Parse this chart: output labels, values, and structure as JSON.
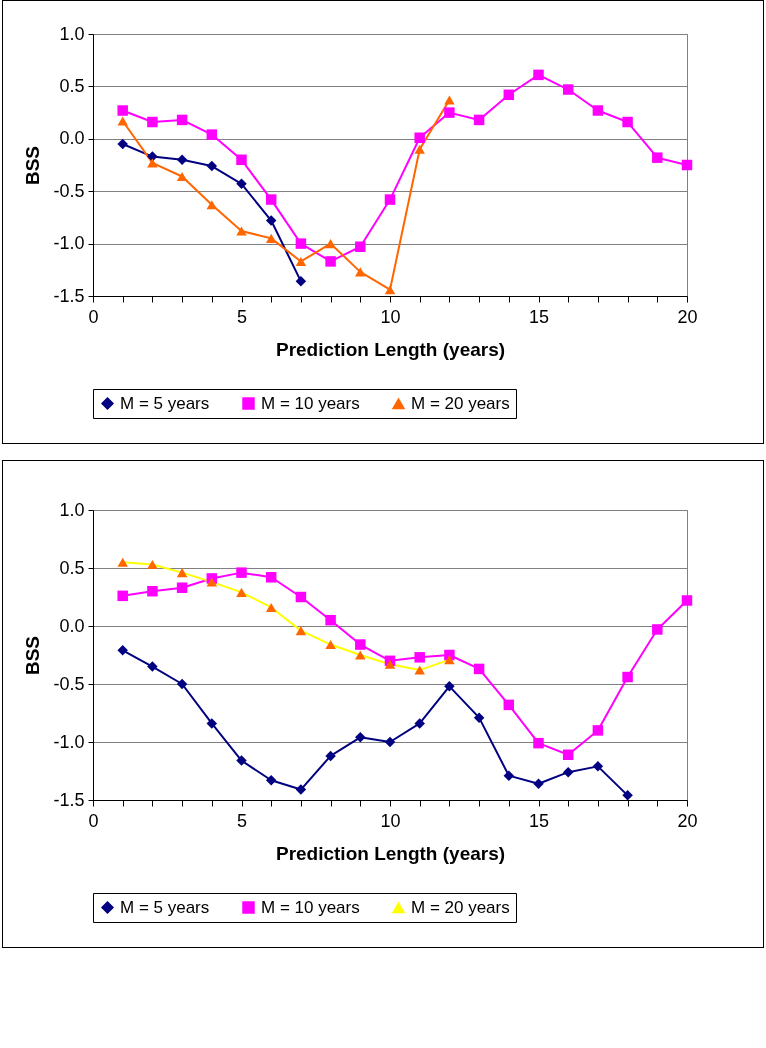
{
  "chart_data": [
    {
      "type": "line",
      "xlabel": "Prediction Length (years)",
      "ylabel": "BSS",
      "xlim": [
        0,
        20
      ],
      "ylim": [
        -1.5,
        1.0
      ],
      "xticks": [
        0,
        {
          "value": 1,
          "label": null
        },
        {
          "value": 2,
          "label": null
        },
        {
          "value": 3,
          "label": null
        },
        {
          "value": 4,
          "label": null
        },
        5,
        {
          "value": 6,
          "label": null
        },
        {
          "value": 7,
          "label": null
        },
        {
          "value": 8,
          "label": null
        },
        {
          "value": 9,
          "label": null
        },
        10,
        {
          "value": 11,
          "label": null
        },
        {
          "value": 12,
          "label": null
        },
        {
          "value": 13,
          "label": null
        },
        {
          "value": 14,
          "label": null
        },
        15,
        {
          "value": 16,
          "label": null
        },
        {
          "value": 17,
          "label": null
        },
        {
          "value": 18,
          "label": null
        },
        {
          "value": 19,
          "label": null
        },
        20
      ],
      "yticks": [
        {
          "value": -1.5,
          "label": "-1.5"
        },
        {
          "value": -1,
          "label": "-1.0"
        },
        {
          "value": -0.5,
          "label": "-0.5"
        },
        {
          "value": 0,
          "label": "0.0"
        },
        {
          "value": 0.5,
          "label": "0.5"
        },
        {
          "value": 1,
          "label": "1.0"
        }
      ],
      "grid": "y",
      "legend": "bottom",
      "x": [
        1,
        2,
        3,
        4,
        5,
        6,
        7,
        8,
        9,
        10,
        11,
        12,
        13,
        14,
        15,
        16,
        17,
        18,
        19,
        20
      ],
      "series": [
        {
          "name": "M = 5 years",
          "color": "#000080",
          "marker": "diamond",
          "values": [
            -0.05,
            -0.17,
            -0.2,
            -0.26,
            -0.43,
            -0.78,
            -1.36,
            null,
            null,
            null,
            null,
            null,
            null,
            null,
            null,
            null,
            null,
            null,
            null,
            null
          ]
        },
        {
          "name": "M = 10 years",
          "color": "#ff00ff",
          "marker": "square",
          "values": [
            0.27,
            0.16,
            0.18,
            0.04,
            -0.2,
            -0.58,
            -1.0,
            -1.17,
            -1.03,
            -0.58,
            0.01,
            0.25,
            0.18,
            0.42,
            0.61,
            0.47,
            0.27,
            0.16,
            -0.18,
            -0.25
          ]
        },
        {
          "name": "M = 20 years",
          "color": "#ff6600",
          "marker": "triangle",
          "values": [
            0.17,
            -0.23,
            -0.36,
            -0.63,
            -0.88,
            -0.95,
            -1.17,
            -1.0,
            -1.27,
            -1.44,
            -0.1,
            0.37,
            null,
            null,
            null,
            null,
            null,
            null,
            null,
            null
          ]
        }
      ]
    },
    {
      "type": "line",
      "xlabel": "Prediction Length (years)",
      "ylabel": "BSS",
      "xlim": [
        0,
        20
      ],
      "ylim": [
        -1.5,
        1.0
      ],
      "xticks": [
        0,
        {
          "value": 1,
          "label": null
        },
        {
          "value": 2,
          "label": null
        },
        {
          "value": 3,
          "label": null
        },
        {
          "value": 4,
          "label": null
        },
        5,
        {
          "value": 6,
          "label": null
        },
        {
          "value": 7,
          "label": null
        },
        {
          "value": 8,
          "label": null
        },
        {
          "value": 9,
          "label": null
        },
        10,
        {
          "value": 11,
          "label": null
        },
        {
          "value": 12,
          "label": null
        },
        {
          "value": 13,
          "label": null
        },
        {
          "value": 14,
          "label": null
        },
        15,
        {
          "value": 16,
          "label": null
        },
        {
          "value": 17,
          "label": null
        },
        {
          "value": 18,
          "label": null
        },
        {
          "value": 19,
          "label": null
        },
        20
      ],
      "yticks": [
        {
          "value": -1.5,
          "label": "-1.5"
        },
        {
          "value": -1,
          "label": "-1.0"
        },
        {
          "value": -0.5,
          "label": "-0.5"
        },
        {
          "value": 0,
          "label": "0.0"
        },
        {
          "value": 0.5,
          "label": "0.5"
        },
        {
          "value": 1,
          "label": "1.0"
        }
      ],
      "grid": "y",
      "legend": "bottom",
      "x": [
        1,
        2,
        3,
        4,
        5,
        6,
        7,
        8,
        9,
        10,
        11,
        12,
        13,
        14,
        15,
        16,
        17,
        18,
        19,
        20
      ],
      "series": [
        {
          "name": "M = 5 years",
          "color": "#000080",
          "marker": "diamond",
          "values": [
            -0.21,
            -0.35,
            -0.5,
            -0.84,
            -1.16,
            -1.33,
            -1.41,
            -1.12,
            -0.96,
            -1.0,
            -0.84,
            -0.52,
            -0.79,
            -1.29,
            -1.36,
            -1.26,
            -1.21,
            -1.46,
            null,
            null
          ]
        },
        {
          "name": "M = 10 years",
          "color": "#ff00ff",
          "marker": "square",
          "values": [
            0.26,
            0.3,
            0.33,
            0.41,
            0.46,
            0.42,
            0.25,
            0.05,
            -0.16,
            -0.3,
            -0.27,
            -0.25,
            -0.37,
            -0.68,
            -1.01,
            -1.11,
            -0.9,
            -0.44,
            -0.03,
            0.22
          ]
        },
        {
          "name": "M = 20 years",
          "color": "#ffff00",
          "marker": "triangle",
          "colors": [
            "#ff6600",
            "#ff6600",
            "#ff6600",
            "#ff6600",
            "#ff6600",
            "#ff6600",
            "#ff6600",
            "#ff6600",
            "#ff6600",
            "#ff6600",
            "#ff6600",
            "#ff6600",
            null,
            null,
            null,
            null,
            null,
            null,
            null,
            null
          ],
          "values": [
            0.55,
            0.53,
            0.46,
            0.38,
            0.29,
            0.16,
            -0.04,
            -0.16,
            -0.25,
            -0.33,
            -0.38,
            -0.29,
            null,
            null,
            null,
            null,
            null,
            null,
            null,
            null
          ]
        }
      ]
    }
  ]
}
